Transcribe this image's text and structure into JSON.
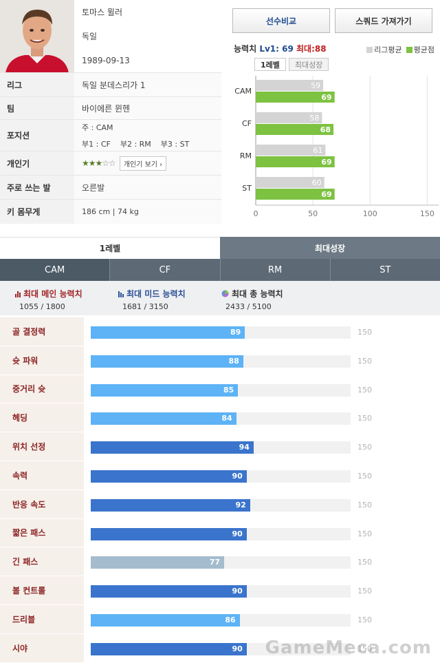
{
  "player": {
    "name": "토마스 뮐러",
    "nation": "독일",
    "birth": "1989-09-13",
    "league_label": "리그",
    "league": "독일 분데스리가 1",
    "team_label": "팀",
    "team": "바이에른 뮌헨",
    "position_label": "포지션",
    "position_main": "주 : CAM",
    "position_sub1": "부1 : CF",
    "position_sub2": "부2 : RM",
    "position_sub3": "부3 : ST",
    "popularity_label": "개인기",
    "popularity_stars": 3,
    "popularity_max": 5,
    "popularity_button": "개인기 보기",
    "foot_label": "주로 쓰는 발",
    "foot": "오른발",
    "body_label": "키 몸무게",
    "body": "186 cm | 74 kg"
  },
  "actions": {
    "compare": "선수비교",
    "squad": "스쿼드 가져가기"
  },
  "ability": {
    "title": "능력치",
    "level": "Lv1: 69",
    "max": "최대:88",
    "legend_league": "리그평균",
    "legend_avg": "평균점",
    "color_league": "#d4d4d4",
    "color_avg": "#7dc241",
    "tabs": [
      "1레벨",
      "최대성장"
    ],
    "chart_data": {
      "type": "bar",
      "orientation": "horizontal",
      "categories": [
        "CAM",
        "CF",
        "RM",
        "ST"
      ],
      "series": [
        {
          "name": "리그평균",
          "values": [
            59,
            58,
            61,
            60
          ]
        },
        {
          "name": "평균점",
          "values": [
            69,
            68,
            69,
            69
          ]
        }
      ],
      "xlim": [
        0,
        160
      ],
      "ticks": [
        0,
        50,
        100,
        150
      ],
      "grid": true
    }
  },
  "main_tabs": [
    "1레벨",
    "최대성장"
  ],
  "position_tabs": [
    "CAM",
    "CF",
    "RM",
    "ST"
  ],
  "summary": {
    "main_label": "최대 메인 능력치",
    "main_value": "1055 / 1800",
    "mid_label": "최대 미드 능력치",
    "mid_value": "1681 / 3150",
    "total_label": "최대 총 능력치",
    "total_value": "2433 / 5100"
  },
  "stats_max": 150,
  "stat_colors": {
    "light": "#5db3f5",
    "dark": "#3a74cc",
    "grey": "#a4bccd"
  },
  "stats": [
    {
      "name": "골 결정력",
      "value": 89,
      "color": "light"
    },
    {
      "name": "슛 파워",
      "value": 88,
      "color": "light"
    },
    {
      "name": "중거리 슛",
      "value": 85,
      "color": "light"
    },
    {
      "name": "헤딩",
      "value": 84,
      "color": "light"
    },
    {
      "name": "위치 선정",
      "value": 94,
      "color": "dark"
    },
    {
      "name": "속력",
      "value": 90,
      "color": "dark"
    },
    {
      "name": "반응 속도",
      "value": 92,
      "color": "dark"
    },
    {
      "name": "짧은 패스",
      "value": 90,
      "color": "dark"
    },
    {
      "name": "긴 패스",
      "value": 77,
      "color": "grey"
    },
    {
      "name": "볼 컨트롤",
      "value": 90,
      "color": "dark"
    },
    {
      "name": "드리블",
      "value": 86,
      "color": "light"
    },
    {
      "name": "시야",
      "value": 90,
      "color": "dark"
    }
  ],
  "watermark": "GameMeca.com"
}
